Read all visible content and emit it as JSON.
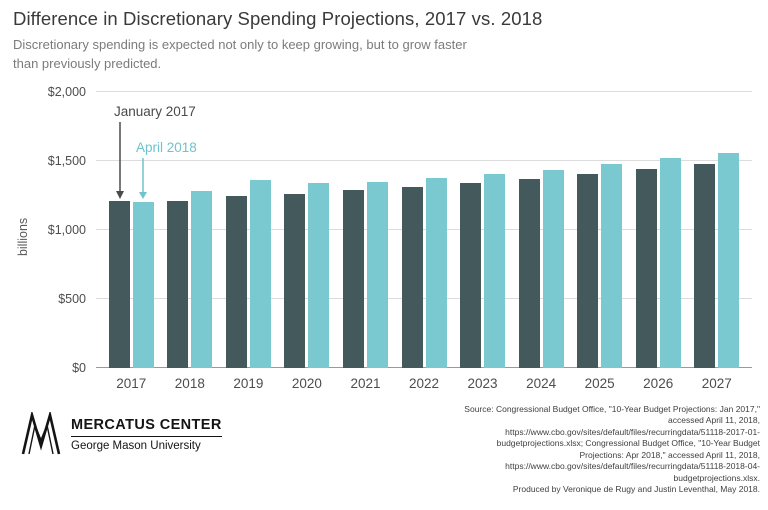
{
  "header": {
    "title": "Difference in Discretionary Spending Projections, 2017 vs. 2018",
    "subtitle": "Discretionary spending is expected not only to keep growing, but to grow faster than previously predicted."
  },
  "chart_data": {
    "type": "bar",
    "title": "Difference in Discretionary Spending Projections, 2017 vs. 2018",
    "categories": [
      "2017",
      "2018",
      "2019",
      "2020",
      "2021",
      "2022",
      "2023",
      "2024",
      "2025",
      "2026",
      "2027"
    ],
    "series": [
      {
        "name": "January 2017",
        "color": "#44595C",
        "values": [
          1210,
          1210,
          1245,
          1260,
          1290,
          1315,
          1340,
          1370,
          1405,
          1440,
          1475
        ]
      },
      {
        "name": "April 2018",
        "color": "#7BC9D0",
        "values": [
          1200,
          1285,
          1360,
          1340,
          1345,
          1380,
          1405,
          1435,
          1480,
          1520,
          1555
        ]
      }
    ],
    "xlabel": "",
    "ylabel": "billions",
    "ylim": [
      0,
      2000
    ],
    "yticks": [
      {
        "value": 0,
        "label": "$0"
      },
      {
        "value": 500,
        "label": "$500"
      },
      {
        "value": 1000,
        "label": "$1,000"
      },
      {
        "value": 1500,
        "label": "$1,500"
      },
      {
        "value": 2000,
        "label": "$2,000"
      }
    ],
    "grid": "horizontal",
    "legend_position": "annotations-with-arrows",
    "annotations": [
      {
        "text": "January 2017",
        "color": "#4a4a4a",
        "points_to": "2017 January 2017 bar"
      },
      {
        "text": "April 2018",
        "color": "#6fc3ca",
        "points_to": "2017 April 2018 bar"
      }
    ]
  },
  "footer": {
    "logo": {
      "icon": "mercatus-m-logo",
      "org": "MERCATUS CENTER",
      "university": "George Mason University"
    },
    "source_text": "Source: Congressional Budget Office, \"10-Year Budget Projections: Jan 2017,\" accessed April 11, 2018, https://www.cbo.gov/sites/default/files/recurringdata/51118-2017-01-budgetprojections.xlsx; Congressional Budget Office, \"10-Year Budget Projections: Apr 2018,\" accessed April 11, 2018, https://www.cbo.gov/sites/default/files/recurringdata/51118-2018-04-budgetprojections.xlsx.",
    "produced_text": "Produced by Veronique de Rugy and Justin Leventhal, May 2018."
  }
}
